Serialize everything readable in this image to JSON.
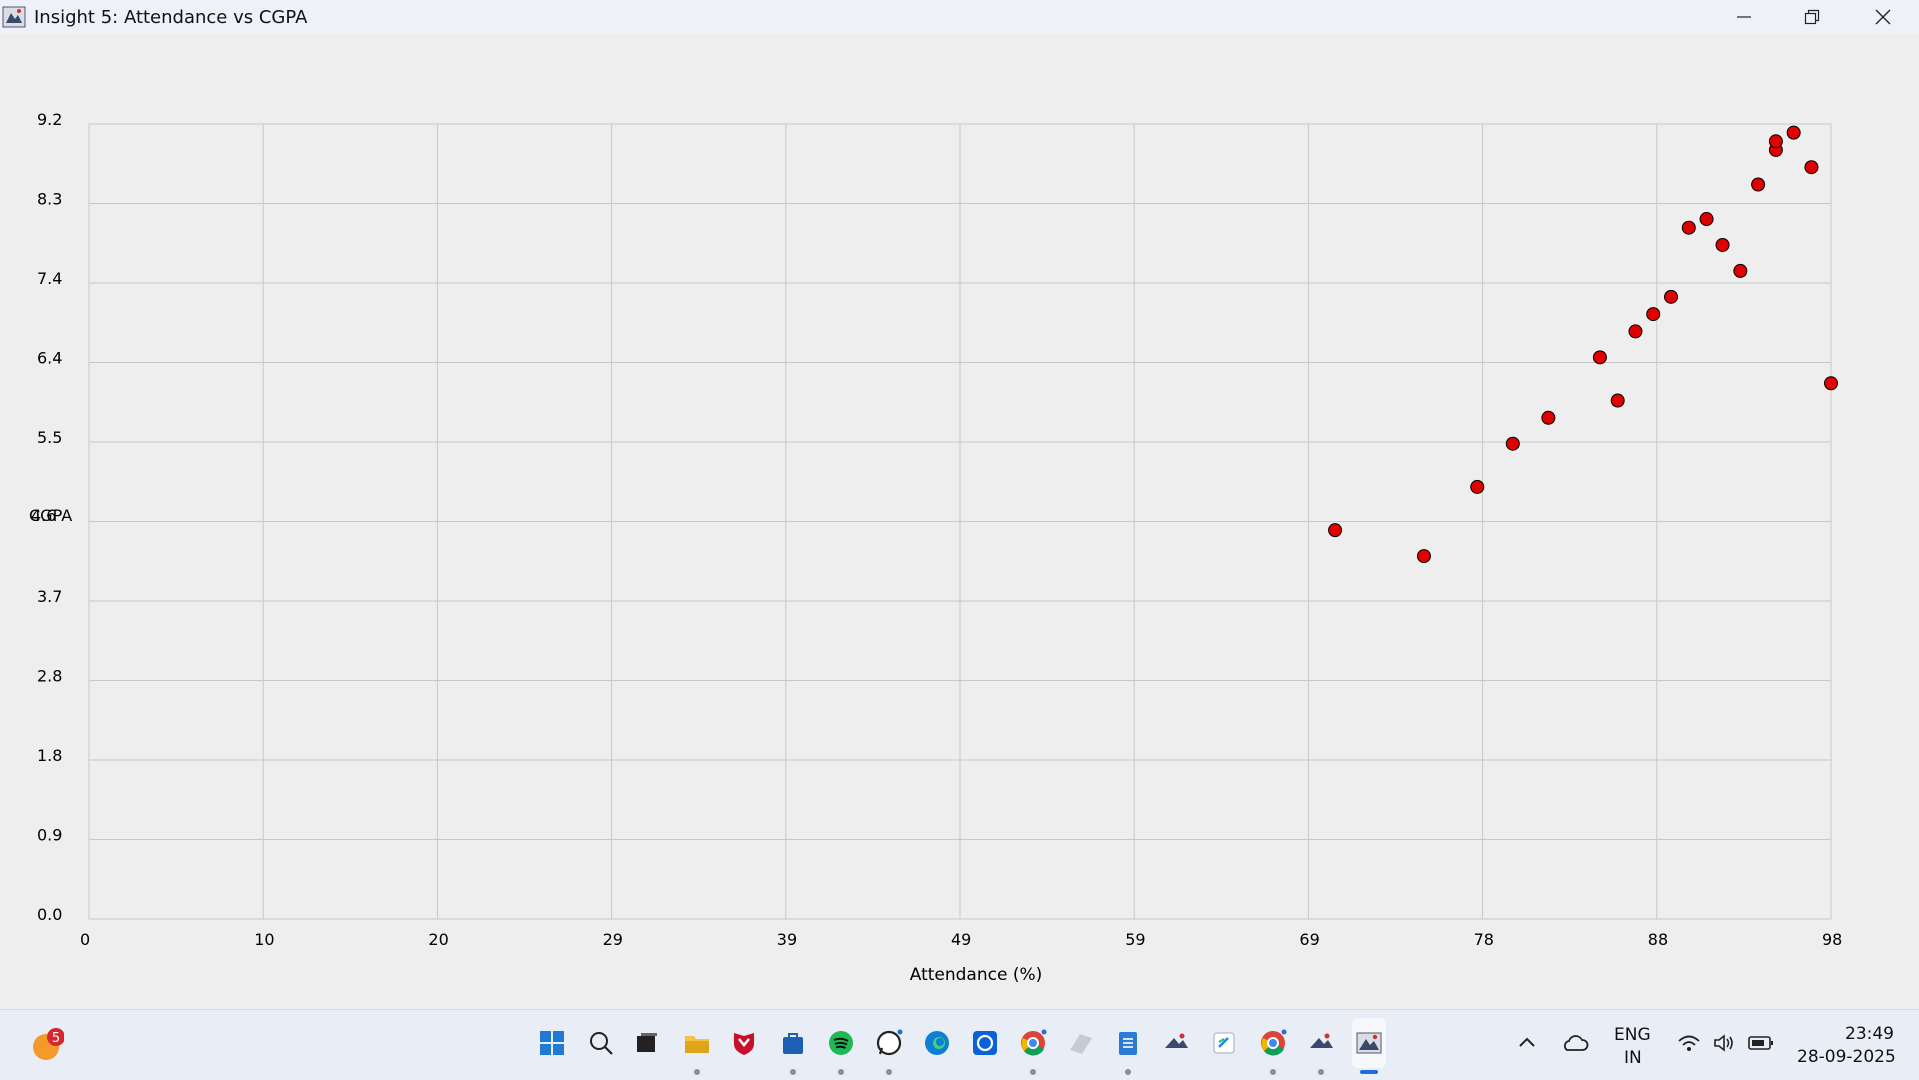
{
  "window": {
    "title": "Insight 5: Attendance vs CGPA",
    "controls": [
      "minimize",
      "restore",
      "close"
    ]
  },
  "chart_data": {
    "type": "scatter",
    "title": "",
    "xlabel": "Attendance (%)",
    "ylabel": "CGPA",
    "y_overlap_tick": "4.6",
    "xlim": [
      0,
      98
    ],
    "ylim": [
      0,
      9.2
    ],
    "x_ticks": [
      "0",
      "10",
      "20",
      "29",
      "39",
      "49",
      "59",
      "69",
      "78",
      "88",
      "98"
    ],
    "y_ticks": [
      "0.0",
      "0.9",
      "1.8",
      "2.8",
      "3.7",
      "4.6",
      "5.5",
      "6.4",
      "7.4",
      "8.3",
      "9.2"
    ],
    "grid": true,
    "marker_color": "#e00000",
    "marker_edge": "#000000",
    "points": [
      {
        "x": 70.1,
        "y": 4.5
      },
      {
        "x": 75.1,
        "y": 4.2
      },
      {
        "x": 78.1,
        "y": 5.0
      },
      {
        "x": 80.1,
        "y": 5.5
      },
      {
        "x": 82.1,
        "y": 5.8
      },
      {
        "x": 85.0,
        "y": 6.5
      },
      {
        "x": 86.0,
        "y": 6.0
      },
      {
        "x": 87.0,
        "y": 6.8
      },
      {
        "x": 88.0,
        "y": 7.0
      },
      {
        "x": 89.0,
        "y": 7.2
      },
      {
        "x": 90.0,
        "y": 8.0
      },
      {
        "x": 91.0,
        "y": 8.1
      },
      {
        "x": 91.9,
        "y": 7.8
      },
      {
        "x": 92.9,
        "y": 7.5
      },
      {
        "x": 93.9,
        "y": 8.5
      },
      {
        "x": 94.9,
        "y": 8.9
      },
      {
        "x": 94.9,
        "y": 9.0
      },
      {
        "x": 95.9,
        "y": 9.1
      },
      {
        "x": 96.9,
        "y": 8.7
      },
      {
        "x": 98.0,
        "y": 6.2
      }
    ]
  },
  "taskbar": {
    "weather_badge": "5",
    "apps": [
      "start-icon",
      "search-icon",
      "task-view-icon",
      "file-explorer-icon",
      "mcafee-icon",
      "store-icon",
      "spotify-icon",
      "whatsapp-icon",
      "edge-icon",
      "app-icon-blue",
      "chrome-icon",
      "notes-icon",
      "notepad-icon",
      "java-icon",
      "vscode-icon",
      "chrome-profile-icon",
      "java-icon-2",
      "active-app-icon"
    ],
    "tray": {
      "lang": "ENG",
      "region": "IN",
      "time": "23:49",
      "date": "28-09-2025"
    }
  }
}
